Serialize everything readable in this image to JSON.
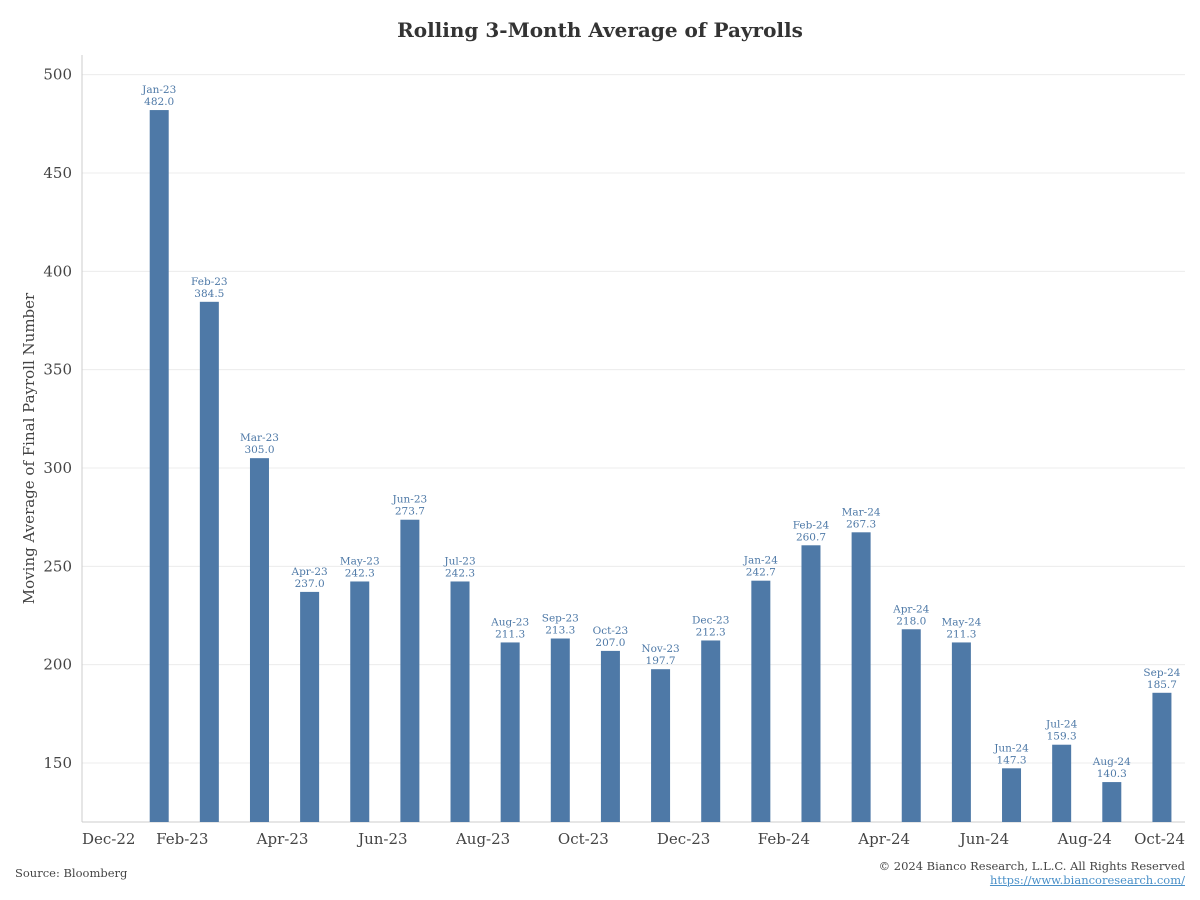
{
  "chart_data": {
    "type": "bar",
    "title": "Rolling 3-Month Average of Payrolls",
    "xlabel": "",
    "ylabel": "Moving Average of Final Payroll Number",
    "ylim": [
      120,
      510
    ],
    "yticks": [
      150,
      200,
      250,
      300,
      350,
      400,
      450,
      500
    ],
    "xlim": [
      "2022-12",
      "2024-10"
    ],
    "xticks": [
      "Dec-22",
      "Feb-23",
      "Apr-23",
      "Jun-23",
      "Aug-23",
      "Oct-23",
      "Dec-23",
      "Feb-24",
      "Apr-24",
      "Jun-24",
      "Aug-24",
      "Oct-24"
    ],
    "grid": true,
    "bar_color": "#4e79a7",
    "bars": [
      {
        "label": "Jan-23",
        "value": 482.0,
        "value_text": "482.0"
      },
      {
        "label": "Feb-23",
        "value": 384.5,
        "value_text": "384.5"
      },
      {
        "label": "Mar-23",
        "value": 305.0,
        "value_text": "305.0"
      },
      {
        "label": "Apr-23",
        "value": 237.0,
        "value_text": "237.0"
      },
      {
        "label": "May-23",
        "value": 242.3,
        "value_text": "242.3"
      },
      {
        "label": "Jun-23",
        "value": 273.7,
        "value_text": "273.7"
      },
      {
        "label": "Jul-23",
        "value": 242.3,
        "value_text": "242.3"
      },
      {
        "label": "Aug-23",
        "value": 211.3,
        "value_text": "211.3"
      },
      {
        "label": "Sep-23",
        "value": 213.3,
        "value_text": "213.3"
      },
      {
        "label": "Oct-23",
        "value": 207.0,
        "value_text": "207.0"
      },
      {
        "label": "Nov-23",
        "value": 197.7,
        "value_text": "197.7"
      },
      {
        "label": "Dec-23",
        "value": 212.3,
        "value_text": "212.3"
      },
      {
        "label": "Jan-24",
        "value": 242.7,
        "value_text": "242.7"
      },
      {
        "label": "Feb-24",
        "value": 260.7,
        "value_text": "260.7"
      },
      {
        "label": "Mar-24",
        "value": 267.3,
        "value_text": "267.3"
      },
      {
        "label": "Apr-24",
        "value": 218.0,
        "value_text": "218.0"
      },
      {
        "label": "May-24",
        "value": 211.3,
        "value_text": "211.3"
      },
      {
        "label": "Jun-24",
        "value": 147.3,
        "value_text": "147.3"
      },
      {
        "label": "Jul-24",
        "value": 159.3,
        "value_text": "159.3"
      },
      {
        "label": "Aug-24",
        "value": 140.3,
        "value_text": "140.3"
      },
      {
        "label": "Sep-24",
        "value": 185.7,
        "value_text": "185.7"
      }
    ]
  },
  "footer": {
    "source": "Source: Bloomberg",
    "copyright": "© 2024 Bianco Research, L.L.C. All Rights Reserved",
    "url": "https://www.biancoresearch.com/"
  }
}
